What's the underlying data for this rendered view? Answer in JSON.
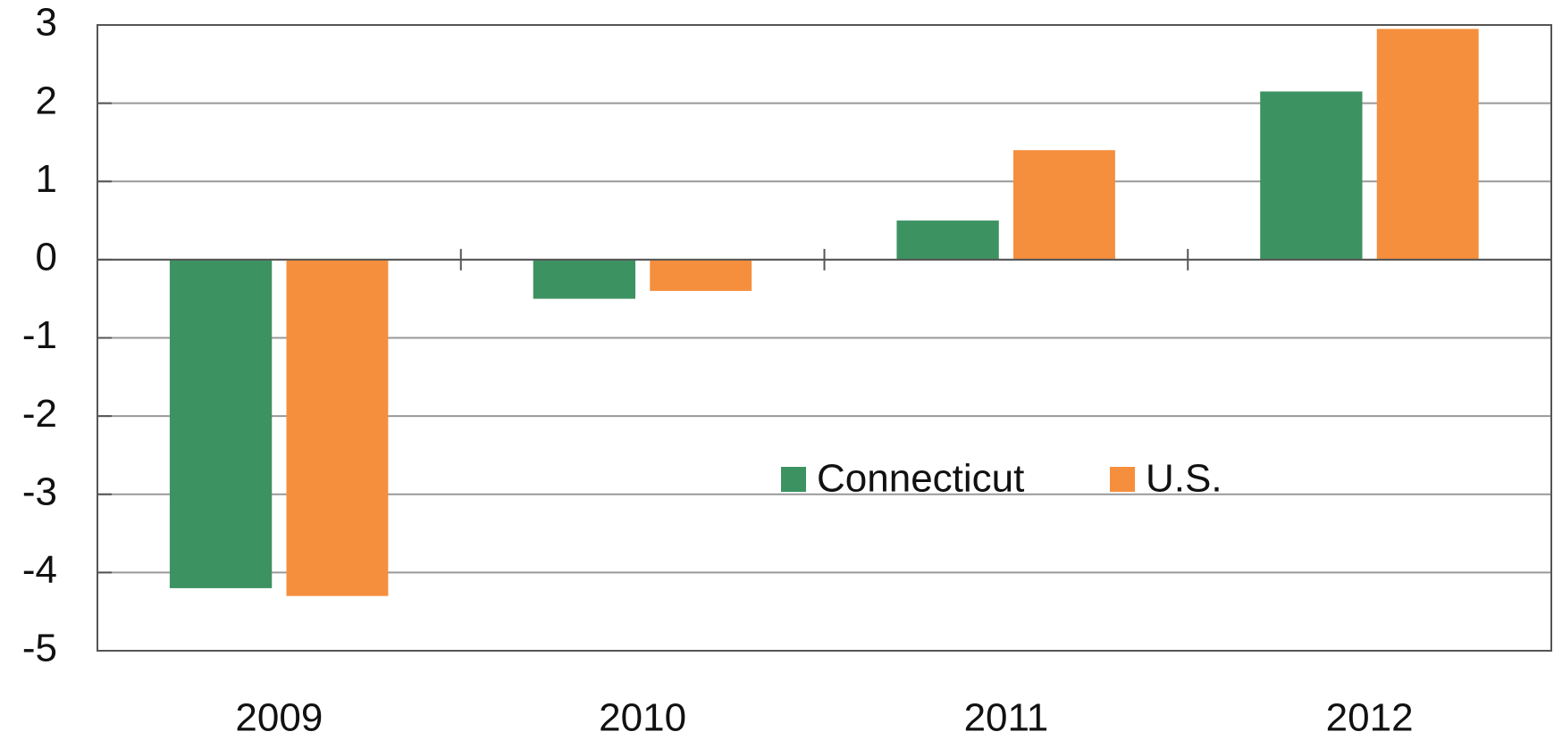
{
  "chart_data": {
    "type": "bar",
    "categories": [
      "2009",
      "2010",
      "2011",
      "2012"
    ],
    "series": [
      {
        "name": "Connecticut",
        "color": "#3d9262",
        "values": [
          -4.2,
          -0.5,
          0.5,
          2.15
        ]
      },
      {
        "name": "U.S.",
        "color": "#f58f3d",
        "values": [
          -4.3,
          -0.4,
          1.4,
          2.95
        ]
      }
    ],
    "ylim": [
      -5,
      3
    ],
    "yticks": [
      -5,
      -4,
      -3,
      -2,
      -1,
      0,
      1,
      2,
      3
    ],
    "grid": true
  }
}
